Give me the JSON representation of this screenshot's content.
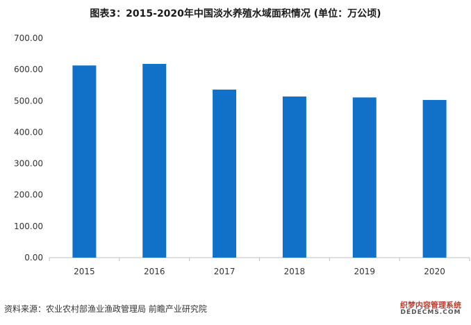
{
  "chart_data": {
    "type": "bar",
    "title": "图表3：2015-2020年中国淡水养殖水域面积情况 (单位：万公顷)",
    "categories": [
      "2015",
      "2016",
      "2017",
      "2018",
      "2019",
      "2020"
    ],
    "values": [
      613,
      618,
      536,
      514,
      511,
      503
    ],
    "ylim": [
      0,
      700
    ],
    "yticks": [
      "0.00",
      "100.00",
      "200.00",
      "300.00",
      "400.00",
      "500.00",
      "600.00",
      "700.00"
    ],
    "bar_color": "#1170c8",
    "grid": false
  },
  "source": "资料来源：农业农村部渔业渔政管理局 前瞻产业研究院",
  "watermark": {
    "line1": "织梦内容管理系统",
    "line2": "DEDECMS.COM"
  }
}
